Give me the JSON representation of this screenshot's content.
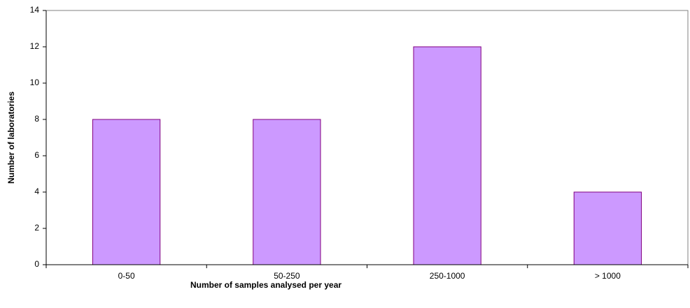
{
  "chart_data": {
    "type": "bar",
    "x_label": "Number of samples analysed per year",
    "y_label": "Number of laboratories",
    "categories": [
      "0-50",
      "50-250",
      "250-1000",
      "> 1000"
    ],
    "values": [
      8,
      8,
      12,
      4
    ],
    "color": "#cc99ff",
    "edge_color": "#800080",
    "ylim": [
      0,
      14
    ],
    "yticks": [
      0,
      2,
      4,
      6,
      8,
      10,
      12,
      14
    ],
    "grid": false
  }
}
